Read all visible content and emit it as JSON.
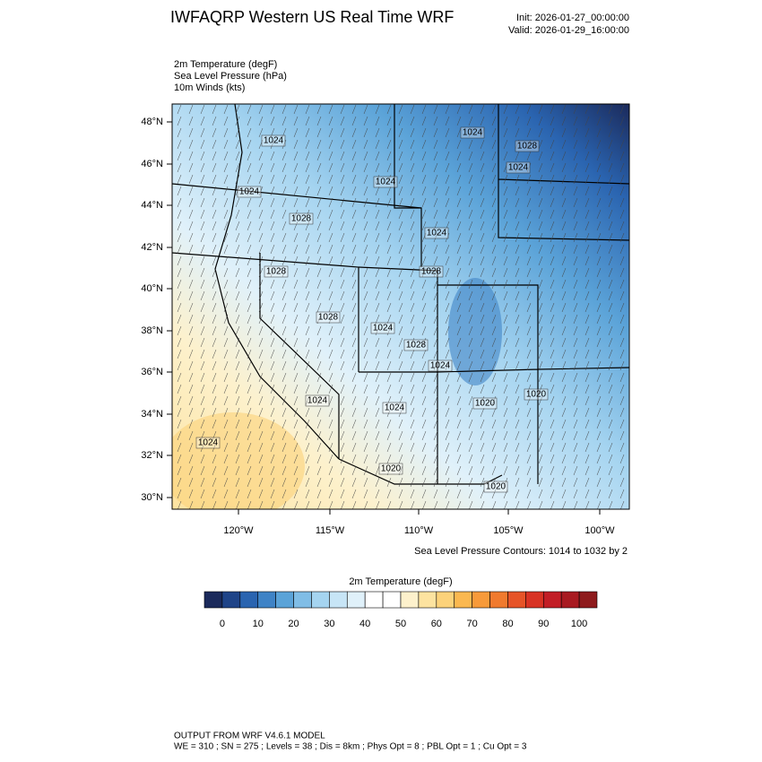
{
  "header": {
    "title": "IWFAQRP Western US Real Time WRF",
    "init": "Init: 2026-01-27_00:00:00",
    "valid": "Valid: 2026-01-29_16:00:00"
  },
  "fields": [
    "2m Temperature   (degF)",
    "Sea Level Pressure   (hPa)",
    "10m Winds   (kts)"
  ],
  "map": {
    "lat_labels": [
      "48°N",
      "46°N",
      "44°N",
      "42°N",
      "40°N",
      "38°N",
      "36°N",
      "34°N",
      "32°N",
      "30°N"
    ],
    "lon_labels": [
      "120°W",
      "115°W",
      "110°W",
      "105°W",
      "100°W"
    ],
    "contour_labels": [
      "1024",
      "1024",
      "1028",
      "1024",
      "1024",
      "1024",
      "1028",
      "1024",
      "1028",
      "1028",
      "1028",
      "1024",
      "1028",
      "1024",
      "1024",
      "1024",
      "1020",
      "1020",
      "1024",
      "1020",
      "1020"
    ],
    "contour_note": "Sea Level Pressure Contours: 1014 to 1032 by 2"
  },
  "colorbar": {
    "title": "2m Temperature  (degF)",
    "colors": [
      "#1b2a5b",
      "#1f4488",
      "#2a64b0",
      "#3f83c6",
      "#5ba3d8",
      "#80bde6",
      "#a5d4f0",
      "#c7e5f6",
      "#e0f1fa",
      "#ffffff",
      "#ffffff",
      "#fdf1cc",
      "#fde3a0",
      "#fcd27a",
      "#fbb850",
      "#f79a3a",
      "#f07a2e",
      "#e65428",
      "#d83324",
      "#c21e26",
      "#a81a21",
      "#8e1b1d"
    ],
    "ticks": [
      0,
      10,
      20,
      30,
      40,
      50,
      60,
      70,
      80,
      90,
      100
    ]
  },
  "footer": [
    "OUTPUT FROM WRF V4.6.1 MODEL",
    "WE = 310 ; SN = 275 ; Levels = 38 ; Dis = 8km ; Phys Opt = 8 ; PBL Opt = 1 ; Cu Opt = 3"
  ]
}
